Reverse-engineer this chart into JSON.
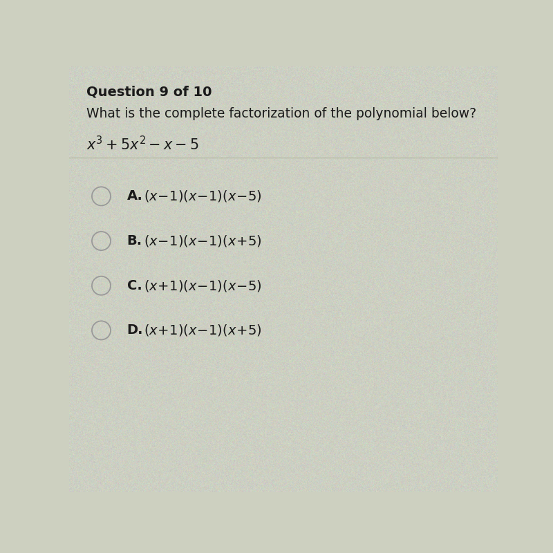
{
  "background_color": "#cdd0c0",
  "question_label": "Question 9 of 10",
  "question_text": "What is the complete factorization of the polynomial below?",
  "divider_color": "#b8bca8",
  "text_color": "#1a1a1a",
  "circle_edge_color": "#999999",
  "font_size_question_label": 14,
  "font_size_question_text": 13.5,
  "font_size_polynomial": 15,
  "font_size_options": 14,
  "option_math_texts": [
    "$(x\\!-\\!1)(x\\!-\\!1)(x\\!-\\!5)$",
    "$(x\\!-\\!1)(x\\!-\\!1)(x\\!+\\!5)$",
    "$(x\\!+\\!1)(x\\!-\\!1)(x\\!-\\!5)$",
    "$(x\\!+\\!1)(x\\!-\\!1)(x\\!+\\!5)$"
  ],
  "option_labels": [
    "A.",
    "B.",
    "C.",
    "D."
  ]
}
